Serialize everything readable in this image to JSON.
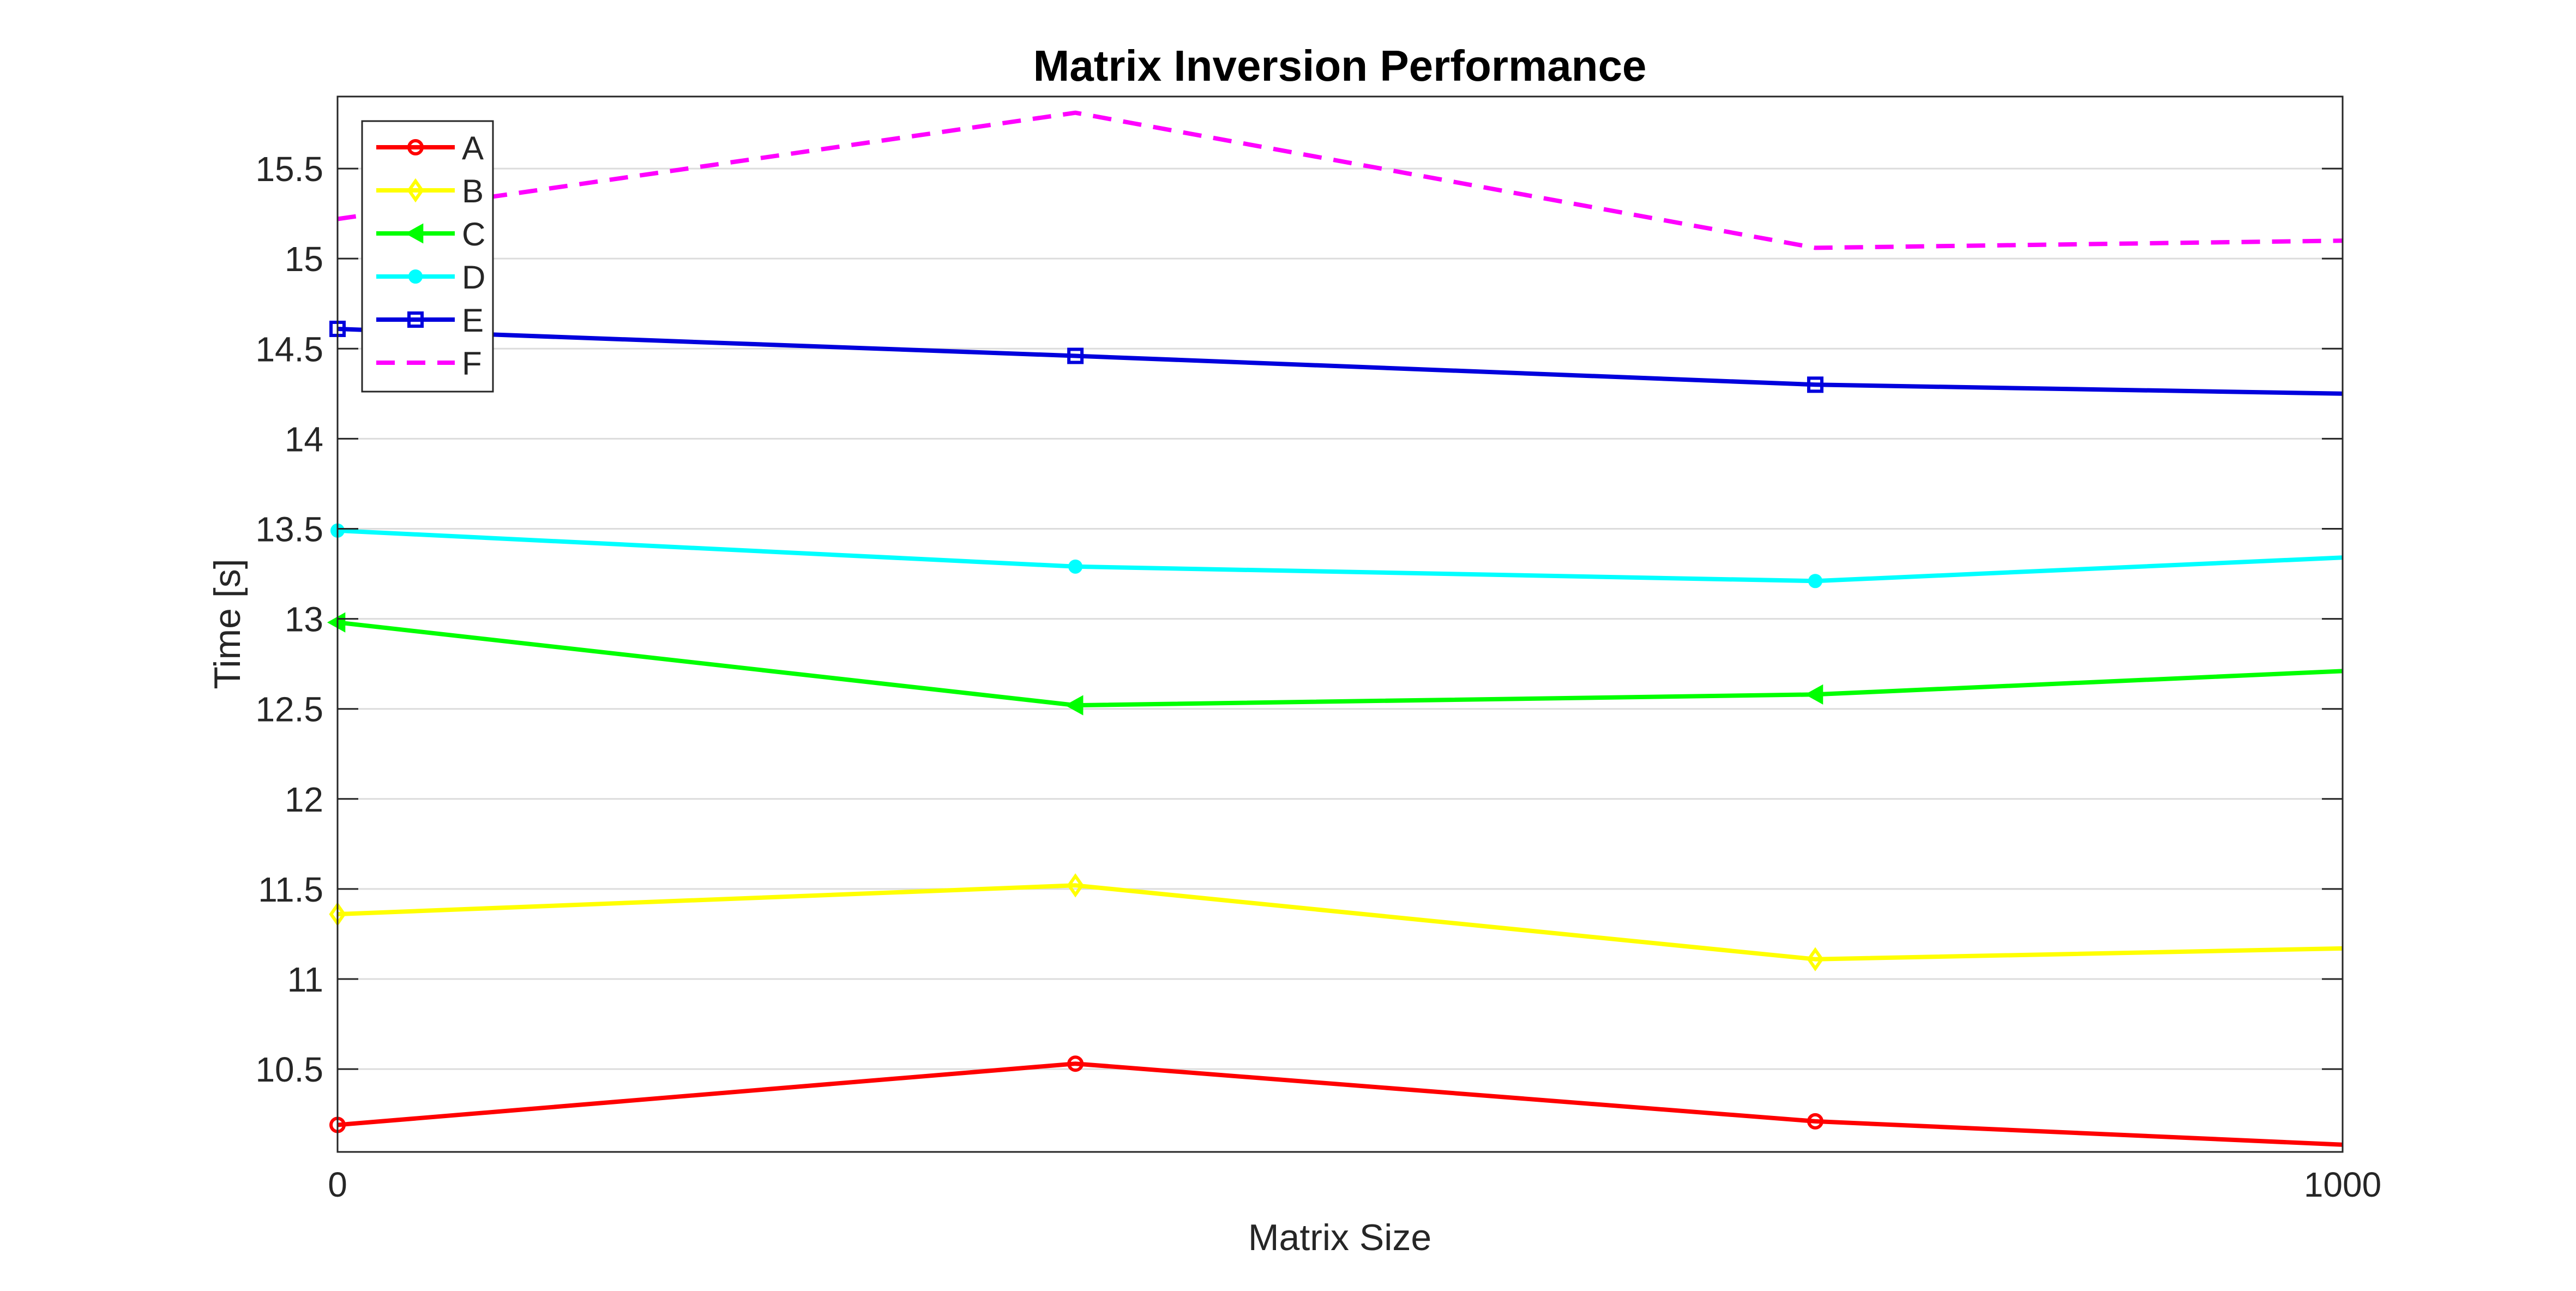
{
  "chart_data": {
    "type": "line",
    "title": "Matrix Inversion Performance",
    "xlabel": "Matrix Size",
    "ylabel": "Time [s]",
    "xlim": [
      0,
      1000
    ],
    "ylim": [
      10.04,
      15.9
    ],
    "x_ticks": [
      0,
      1000
    ],
    "x_tick_labels": [
      "0",
      "1000"
    ],
    "y_ticks": [
      10.5,
      11,
      11.5,
      12,
      12.5,
      13,
      13.5,
      14,
      14.5,
      15,
      15.5
    ],
    "y_tick_labels": [
      "10.5",
      "11",
      "11.5",
      "12",
      "12.5",
      "13",
      "13.5",
      "14",
      "14.5",
      "15",
      "15.5"
    ],
    "grid": "horizontal",
    "legend_position": "top-left",
    "x": [
      0,
      368,
      737,
      1000
    ],
    "series": [
      {
        "name": "A",
        "color": "#ff0000",
        "marker": "circle",
        "dash": "solid",
        "values": [
          10.19,
          10.53,
          10.21,
          10.08
        ],
        "marker_indices": [
          0,
          1,
          2
        ]
      },
      {
        "name": "B",
        "color": "#ffff00",
        "marker": "diamond",
        "dash": "solid",
        "values": [
          11.36,
          11.52,
          11.11,
          11.17
        ],
        "marker_indices": [
          0,
          1,
          2
        ]
      },
      {
        "name": "C",
        "color": "#00ff00",
        "marker": "triangle-left",
        "dash": "solid",
        "values": [
          12.98,
          12.52,
          12.58,
          12.71
        ],
        "marker_indices": [
          0,
          1,
          2
        ]
      },
      {
        "name": "D",
        "color": "#00ffff",
        "marker": "dot",
        "dash": "solid",
        "values": [
          13.49,
          13.29,
          13.21,
          13.34
        ],
        "marker_indices": [
          0,
          1,
          2
        ]
      },
      {
        "name": "E",
        "color": "#0000dd",
        "marker": "square",
        "dash": "solid",
        "values": [
          14.61,
          14.46,
          14.3,
          14.25
        ],
        "marker_indices": [
          0,
          1,
          2
        ]
      },
      {
        "name": "F",
        "color": "#ff00ff",
        "marker": "none",
        "dash": "dashed",
        "values": [
          15.22,
          15.81,
          15.06,
          15.1
        ],
        "marker_indices": []
      }
    ]
  }
}
